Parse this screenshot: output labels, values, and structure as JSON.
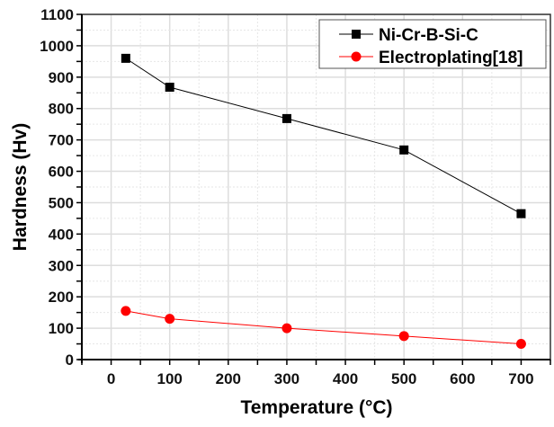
{
  "chart_data": {
    "type": "line",
    "title": "",
    "xlabel": "Temperature (°C)",
    "ylabel": "Hardness (Hv)",
    "xlim": [
      -50,
      750
    ],
    "ylim": [
      0,
      1100
    ],
    "x_ticks": [
      "0",
      "100",
      "200",
      "300",
      "400",
      "500",
      "600",
      "700"
    ],
    "y_ticks": [
      "0",
      "100",
      "200",
      "300",
      "400",
      "500",
      "600",
      "700",
      "800",
      "900",
      "1000",
      "1100"
    ],
    "grid": true,
    "legend_position": "top-right",
    "series": [
      {
        "name": "Ni-Cr-B-Si-C",
        "color": "#000000",
        "marker": "square",
        "x": [
          25,
          100,
          300,
          500,
          700
        ],
        "values": [
          960,
          868,
          768,
          668,
          465
        ]
      },
      {
        "name": "Electroplating[18]",
        "color": "#ff0000",
        "marker": "circle",
        "x": [
          25,
          100,
          300,
          500,
          700
        ],
        "values": [
          155,
          130,
          100,
          75,
          50
        ]
      }
    ]
  }
}
